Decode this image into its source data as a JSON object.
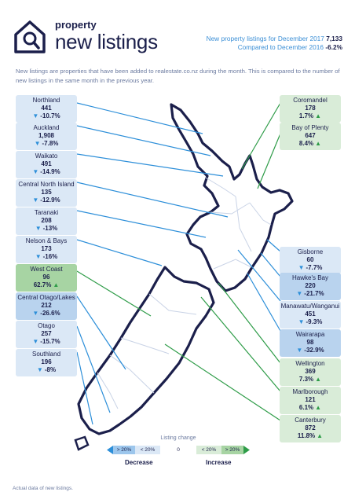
{
  "brand": {
    "small": "property",
    "big": "new listings"
  },
  "header": {
    "line1_text": "New property listings for December 2017",
    "line1_value": "7,133",
    "line2_text": "Compared to December 2016",
    "line2_value": "-6.2%"
  },
  "intro": "New listings are properties that have been added to realestate.co.nz during the month. This is compared to the number of new listings in the same month in the previous year.",
  "regions": {
    "northland": {
      "name": "Northland",
      "count": "441",
      "change": "-10.7%"
    },
    "auckland": {
      "name": "Auckland",
      "count": "1,908",
      "change": "-7.8%"
    },
    "waikato": {
      "name": "Waikato",
      "count": "491",
      "change": "-14.9%"
    },
    "central_north_island": {
      "name": "Central North Island",
      "count": "135",
      "change": "-12.9%"
    },
    "taranaki": {
      "name": "Taranaki",
      "count": "208",
      "change": "-13%"
    },
    "nelson_bays": {
      "name": "Nelson & Bays",
      "count": "173",
      "change": "-16%"
    },
    "west_coast": {
      "name": "West Coast",
      "count": "96",
      "change": "62.7%"
    },
    "central_otago": {
      "name": "Central Otago/Lakes",
      "count": "212",
      "change": "-26.6%"
    },
    "otago": {
      "name": "Otago",
      "count": "257",
      "change": "-15.7%"
    },
    "southland": {
      "name": "Southland",
      "count": "196",
      "change": "-8%"
    },
    "coromandel": {
      "name": "Coromandel",
      "count": "178",
      "change": "1.7%"
    },
    "bay_of_plenty": {
      "name": "Bay of Plenty",
      "count": "647",
      "change": "8.4%"
    },
    "gisborne": {
      "name": "Gisborne",
      "count": "60",
      "change": "-7.7%"
    },
    "hawkes_bay": {
      "name": "Hawke's Bay",
      "count": "220",
      "change": "-21.7%"
    },
    "manawatu": {
      "name": "Manawatu/Wanganui",
      "count": "451",
      "change": "-9.3%"
    },
    "wairarapa": {
      "name": "Wairarapa",
      "count": "98",
      "change": "-32.9%"
    },
    "wellington": {
      "name": "Wellington",
      "count": "369",
      "change": "7.3%"
    },
    "marlborough": {
      "name": "Marlborough",
      "count": "121",
      "change": "6.1%"
    },
    "canterbury": {
      "name": "Canterbury",
      "count": "872",
      "change": "11.8%"
    }
  },
  "legend": {
    "title": "Listing change",
    "dec_big": "> 20%",
    "dec_small": "< 20%",
    "zero": "0",
    "inc_small": "< 20%",
    "inc_big": "> 20%",
    "decrease": "Decrease",
    "increase": "Increase"
  },
  "footer": "Actual data of new listings.",
  "colors": {
    "navy": "#1b1f4b",
    "blue_light": "#dbe8f6",
    "blue_medium": "#b9d3ee",
    "green_light": "#d9ecd8",
    "green_dark": "#a7d4a3",
    "line_blue": "#2d8fd9",
    "line_green": "#2e9c48"
  }
}
